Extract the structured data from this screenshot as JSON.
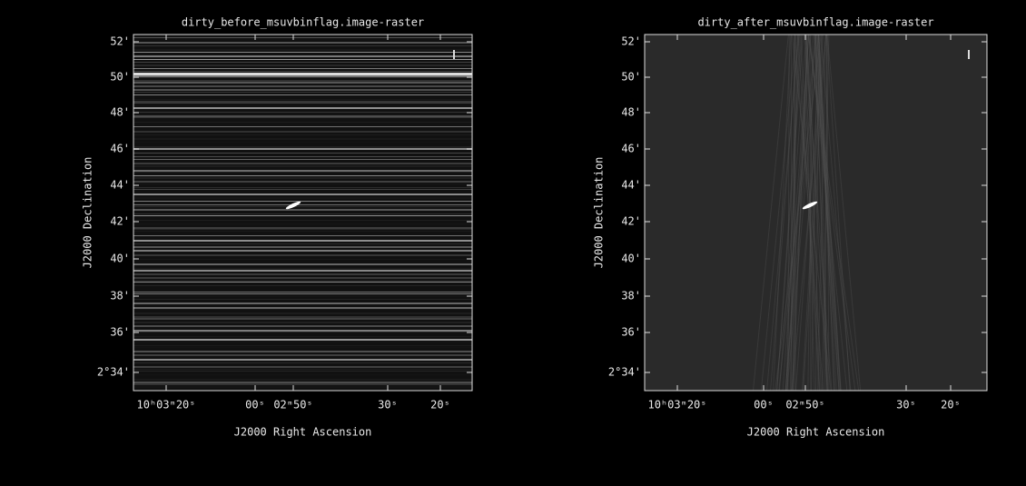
{
  "panels": [
    {
      "title": "dirty_before_msuvbinflag.image-raster",
      "x_label": "J2000 Right Ascension",
      "y_label": "J2000 Declination",
      "x_ticks": [
        "10ʰ03ᵐ20ˢ",
        "00ˢ",
        "02ᵐ50ˢ",
        "30ˢ",
        "20ˢ"
      ],
      "y_ticks": [
        "52'",
        "50'",
        "48'",
        "46'",
        "44'",
        "42'",
        "40'",
        "38'",
        "36'",
        "2°34'"
      ]
    },
    {
      "title": "dirty_after_msuvbinflag.image-raster",
      "x_label": "J2000 Right Ascension",
      "y_label": "J2000 Declination",
      "x_ticks": [
        "10ʰ03ᵐ20ˢ",
        "00ˢ",
        "02ᵐ50ˢ",
        "30ˢ",
        "20ˢ"
      ],
      "y_ticks": [
        "52'",
        "50'",
        "48'",
        "46'",
        "44'",
        "42'",
        "40'",
        "38'",
        "36'",
        "2°34'"
      ]
    }
  ]
}
